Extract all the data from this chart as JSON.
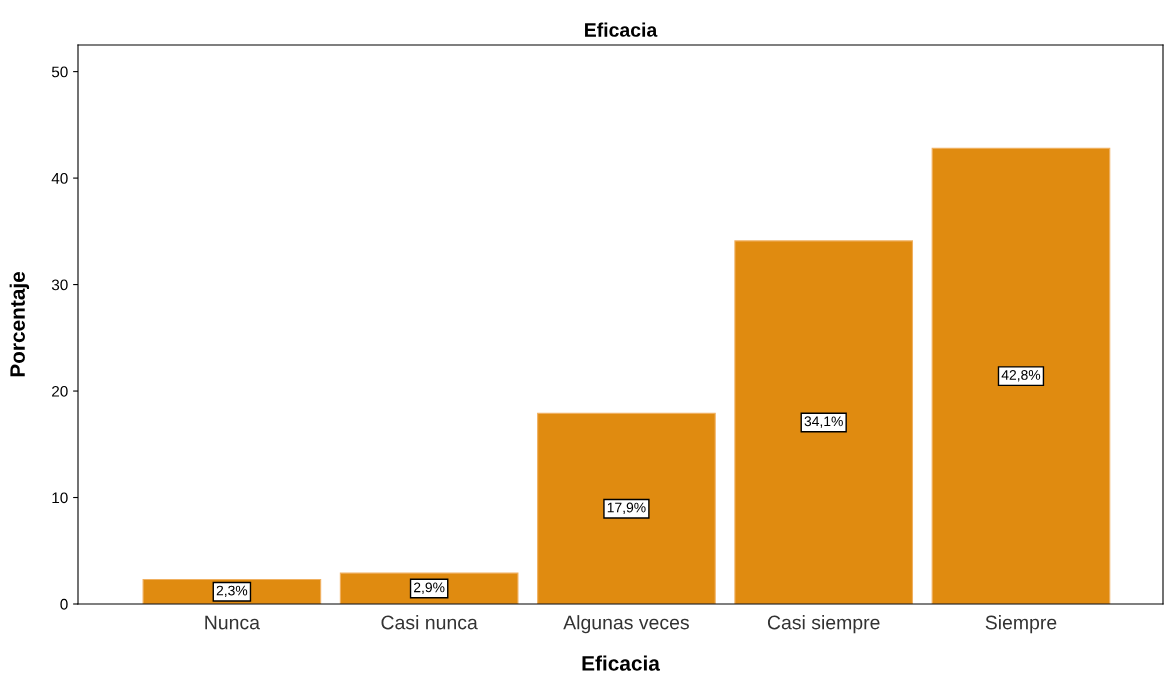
{
  "chart_data": {
    "type": "bar",
    "title": "Eficacia",
    "xlabel": "Eficacia",
    "ylabel": "Porcentaje",
    "categories": [
      "Nunca",
      "Casi nunca",
      "Algunas veces",
      "Casi siempre",
      "Siempre"
    ],
    "values": [
      2.3,
      2.9,
      17.9,
      34.1,
      42.8
    ],
    "value_labels": [
      "2,3%",
      "2,9%",
      "17,9%",
      "34,1%",
      "42,8%"
    ],
    "color": "#e08b10",
    "ylim": [
      0,
      52.5
    ],
    "yticks": [
      0,
      10,
      20,
      30,
      40,
      50
    ],
    "grid": false
  }
}
